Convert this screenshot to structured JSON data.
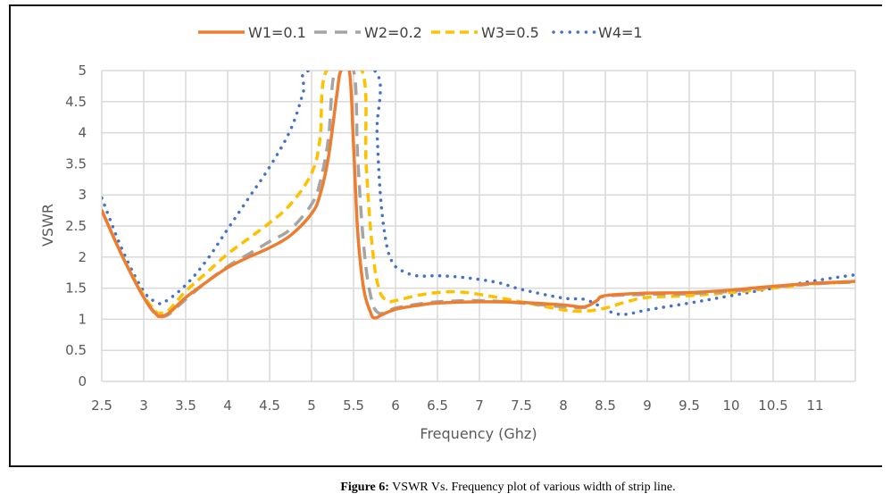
{
  "chart_data": {
    "type": "line",
    "title": "",
    "xlabel": "Frequency (Ghz)",
    "ylabel": "VSWR",
    "xlim": [
      2.5,
      11.5
    ],
    "ylim": [
      0,
      5
    ],
    "grid": true,
    "legend_position": "top",
    "x_ticks": [
      "2.5",
      "3",
      "3.5",
      "4",
      "4.5",
      "5",
      "5.5",
      "6",
      "6.5",
      "7",
      "7.5",
      "8",
      "8.5",
      "9",
      "9.5",
      "10",
      "10.5",
      "11"
    ],
    "y_ticks": [
      "0",
      "0.5",
      "1",
      "1.5",
      "2",
      "2.5",
      "3",
      "3.5",
      "4",
      "4.5",
      "5"
    ],
    "series": [
      {
        "name": "W1=0.1",
        "color": "#ED7D31",
        "style": "solid",
        "points": [
          [
            2.5,
            2.75
          ],
          [
            2.75,
            2.0
          ],
          [
            3.0,
            1.35
          ],
          [
            3.15,
            1.08
          ],
          [
            3.2,
            1.05
          ],
          [
            3.3,
            1.1
          ],
          [
            3.5,
            1.35
          ],
          [
            3.75,
            1.6
          ],
          [
            4.0,
            1.83
          ],
          [
            4.25,
            2.0
          ],
          [
            4.5,
            2.15
          ],
          [
            4.75,
            2.35
          ],
          [
            5.0,
            2.7
          ],
          [
            5.1,
            3.0
          ],
          [
            5.2,
            3.6
          ],
          [
            5.3,
            4.6
          ],
          [
            5.35,
            5.0
          ],
          [
            5.45,
            5.0
          ],
          [
            5.5,
            3.8
          ],
          [
            5.55,
            2.4
          ],
          [
            5.62,
            1.5
          ],
          [
            5.7,
            1.12
          ],
          [
            5.75,
            1.02
          ],
          [
            5.85,
            1.08
          ],
          [
            6.0,
            1.16
          ],
          [
            6.25,
            1.22
          ],
          [
            6.5,
            1.26
          ],
          [
            7.0,
            1.28
          ],
          [
            7.5,
            1.27
          ],
          [
            8.0,
            1.23
          ],
          [
            8.25,
            1.2
          ],
          [
            8.4,
            1.3
          ],
          [
            8.5,
            1.38
          ],
          [
            9.0,
            1.42
          ],
          [
            9.5,
            1.43
          ],
          [
            10.0,
            1.47
          ],
          [
            10.5,
            1.53
          ],
          [
            11.0,
            1.58
          ],
          [
            11.5,
            1.61
          ]
        ]
      },
      {
        "name": "W2=0.2",
        "color": "#A5A5A5",
        "style": "dashed",
        "points": [
          [
            2.5,
            2.75
          ],
          [
            2.75,
            2.0
          ],
          [
            3.0,
            1.35
          ],
          [
            3.15,
            1.06
          ],
          [
            3.2,
            1.04
          ],
          [
            3.3,
            1.08
          ],
          [
            3.5,
            1.32
          ],
          [
            3.75,
            1.6
          ],
          [
            4.0,
            1.85
          ],
          [
            4.25,
            2.05
          ],
          [
            4.5,
            2.25
          ],
          [
            4.75,
            2.45
          ],
          [
            5.0,
            2.85
          ],
          [
            5.1,
            3.2
          ],
          [
            5.2,
            3.9
          ],
          [
            5.28,
            5.0
          ],
          [
            5.5,
            5.0
          ],
          [
            5.55,
            3.6
          ],
          [
            5.62,
            2.2
          ],
          [
            5.7,
            1.4
          ],
          [
            5.8,
            1.1
          ],
          [
            6.0,
            1.18
          ],
          [
            6.25,
            1.24
          ],
          [
            6.5,
            1.28
          ],
          [
            7.0,
            1.3
          ],
          [
            7.5,
            1.26
          ],
          [
            8.0,
            1.2
          ],
          [
            8.25,
            1.19
          ],
          [
            8.4,
            1.3
          ],
          [
            8.5,
            1.37
          ],
          [
            9.0,
            1.4
          ],
          [
            9.5,
            1.41
          ],
          [
            10.0,
            1.45
          ],
          [
            10.5,
            1.52
          ],
          [
            11.0,
            1.57
          ],
          [
            11.5,
            1.6
          ]
        ]
      },
      {
        "name": "W3=0.5",
        "color": "#FFC000",
        "style": "dashed",
        "points": [
          [
            2.5,
            2.75
          ],
          [
            2.75,
            2.0
          ],
          [
            3.0,
            1.38
          ],
          [
            3.15,
            1.12
          ],
          [
            3.2,
            1.1
          ],
          [
            3.3,
            1.15
          ],
          [
            3.5,
            1.45
          ],
          [
            3.75,
            1.75
          ],
          [
            4.0,
            2.05
          ],
          [
            4.25,
            2.3
          ],
          [
            4.5,
            2.55
          ],
          [
            4.75,
            2.85
          ],
          [
            5.0,
            3.35
          ],
          [
            5.1,
            3.9
          ],
          [
            5.18,
            5.0
          ],
          [
            5.6,
            5.0
          ],
          [
            5.65,
            3.5
          ],
          [
            5.72,
            2.2
          ],
          [
            5.8,
            1.5
          ],
          [
            5.9,
            1.3
          ],
          [
            6.0,
            1.3
          ],
          [
            6.25,
            1.38
          ],
          [
            6.5,
            1.43
          ],
          [
            6.75,
            1.44
          ],
          [
            7.0,
            1.4
          ],
          [
            7.5,
            1.28
          ],
          [
            8.0,
            1.15
          ],
          [
            8.25,
            1.13
          ],
          [
            8.5,
            1.18
          ],
          [
            8.75,
            1.28
          ],
          [
            9.0,
            1.35
          ],
          [
            9.5,
            1.38
          ],
          [
            10.0,
            1.43
          ],
          [
            10.5,
            1.5
          ],
          [
            11.0,
            1.57
          ],
          [
            11.5,
            1.6
          ]
        ]
      },
      {
        "name": "W4=1",
        "color": "#4472C4",
        "style": "dotted",
        "points": [
          [
            2.5,
            2.95
          ],
          [
            2.75,
            2.1
          ],
          [
            3.0,
            1.45
          ],
          [
            3.15,
            1.28
          ],
          [
            3.25,
            1.28
          ],
          [
            3.5,
            1.55
          ],
          [
            3.75,
            1.95
          ],
          [
            4.0,
            2.45
          ],
          [
            4.25,
            2.95
          ],
          [
            4.5,
            3.45
          ],
          [
            4.75,
            4.05
          ],
          [
            4.9,
            4.65
          ],
          [
            4.97,
            5.0
          ],
          [
            5.75,
            5.0
          ],
          [
            5.78,
            4.0
          ],
          [
            5.82,
            3.0
          ],
          [
            5.88,
            2.3
          ],
          [
            5.95,
            1.95
          ],
          [
            6.05,
            1.8
          ],
          [
            6.25,
            1.7
          ],
          [
            6.5,
            1.7
          ],
          [
            6.75,
            1.68
          ],
          [
            7.0,
            1.64
          ],
          [
            7.25,
            1.58
          ],
          [
            7.5,
            1.48
          ],
          [
            8.0,
            1.34
          ],
          [
            8.25,
            1.32
          ],
          [
            8.45,
            1.2
          ],
          [
            8.6,
            1.1
          ],
          [
            8.75,
            1.08
          ],
          [
            9.0,
            1.15
          ],
          [
            9.5,
            1.26
          ],
          [
            10.0,
            1.38
          ],
          [
            10.5,
            1.5
          ],
          [
            11.0,
            1.62
          ],
          [
            11.5,
            1.72
          ]
        ]
      }
    ]
  },
  "caption": {
    "label": "Figure 6:",
    "text": " VSWR Vs. Frequency plot of various width of strip line."
  }
}
